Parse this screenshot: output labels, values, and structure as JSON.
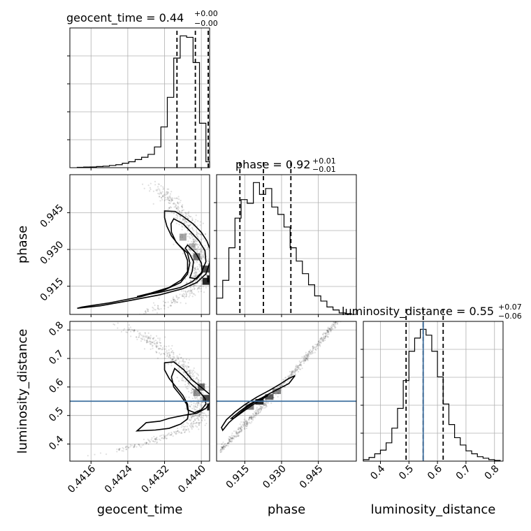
{
  "chart_data": {
    "type": "corner",
    "parameters": [
      "geocent_time",
      "phase",
      "luminosity_distance"
    ],
    "truth": {
      "luminosity_distance": 0.55
    },
    "truth_color": "#3f6f9f",
    "axes": {
      "geocent_time": {
        "range": [
          0.44114,
          0.44418
        ],
        "ticks": [
          0.4416,
          0.4424,
          0.4432,
          0.444
        ],
        "tick_labels": [
          "0.4416",
          "0.4424",
          "0.4432",
          "0.4440"
        ],
        "label": "geocent_time"
      },
      "phase": {
        "range": [
          0.9035,
          0.9605
        ],
        "ticks": [
          0.915,
          0.93,
          0.945
        ],
        "tick_labels": [
          "0.915",
          "0.930",
          "0.945"
        ],
        "label": "phase"
      },
      "luminosity_distance": {
        "range": [
          0.34,
          0.83
        ],
        "ticks": [
          0.4,
          0.5,
          0.6,
          0.7,
          0.8
        ],
        "tick_labels": [
          "0.4",
          "0.5",
          "0.6",
          "0.7",
          "0.8"
        ],
        "label": "luminosity_distance"
      }
    },
    "titles": [
      {
        "param": "geocent_time",
        "text": "geocent_time = 0.44",
        "sup": "+0.00",
        "sub": "−0.00"
      },
      {
        "param": "phase",
        "text": "phase = 0.92",
        "sup": "+0.01",
        "sub": "−0.01"
      },
      {
        "param": "luminosity_distance",
        "text": "luminosity_distance = 0.55",
        "sup": "+0.07",
        "sub": "−0.06"
      }
    ],
    "histograms": {
      "geocent_time": {
        "bin_edges": [
          0.4413,
          0.44144,
          0.44158,
          0.44172,
          0.44186,
          0.442,
          0.44214,
          0.44228,
          0.44242,
          0.44256,
          0.4427,
          0.44284,
          0.44298,
          0.44312,
          0.44326,
          0.4434,
          0.44354,
          0.44368,
          0.44382,
          0.44396,
          0.4441,
          0.44418
        ],
        "counts": [
          0.5,
          0.8,
          1,
          1.5,
          2,
          3,
          4,
          6,
          8,
          11,
          14,
          18,
          28,
          55,
          95,
          148,
          178,
          176,
          142,
          60,
          8
        ],
        "quantiles": [
          0.44347,
          0.44387,
          0.44415
        ]
      },
      "phase": {
        "bin_edges": [
          0.9035,
          0.906,
          0.9085,
          0.911,
          0.9135,
          0.916,
          0.9185,
          0.921,
          0.9235,
          0.926,
          0.9285,
          0.931,
          0.9335,
          0.936,
          0.9385,
          0.941,
          0.9435,
          0.946,
          0.9485,
          0.951,
          0.9535,
          0.956,
          0.9585
        ],
        "counts": [
          22,
          46,
          90,
          130,
          155,
          150,
          178,
          162,
          170,
          145,
          135,
          118,
          90,
          72,
          55,
          40,
          25,
          18,
          10,
          6,
          2,
          1
        ],
        "quantiles": [
          0.913,
          0.9226,
          0.9338
        ]
      },
      "luminosity_distance": {
        "bin_edges": [
          0.34,
          0.36,
          0.38,
          0.4,
          0.42,
          0.44,
          0.46,
          0.48,
          0.5,
          0.52,
          0.54,
          0.56,
          0.58,
          0.6,
          0.62,
          0.64,
          0.66,
          0.68,
          0.7,
          0.72,
          0.74,
          0.76,
          0.78,
          0.8,
          0.82
        ],
        "counts": [
          2,
          5,
          10,
          15,
          25,
          45,
          72,
          110,
          150,
          168,
          180,
          172,
          150,
          115,
          78,
          50,
          32,
          22,
          14,
          10,
          6,
          4,
          2,
          1
        ],
        "quantiles": [
          0.49,
          0.55,
          0.62
        ]
      }
    },
    "scatter_2d": {
      "phase_vs_geocent_time": {
        "center": [
          0.44392,
          0.9255
        ],
        "contours": [
          [
            [
              0.4432,
              0.9457
            ],
            [
              0.44343,
              0.9455
            ],
            [
              0.4436,
              0.9435
            ],
            [
              0.44382,
              0.9405
            ],
            [
              0.444,
              0.937
            ],
            [
              0.44412,
              0.9335
            ],
            [
              0.4442,
              0.9295
            ],
            [
              0.44418,
              0.9245
            ],
            [
              0.4441,
              0.92
            ],
            [
              0.4439,
              0.9165
            ],
            [
              0.4436,
              0.914
            ],
            [
              0.4431,
              0.9115
            ],
            [
              0.4424,
              0.909
            ],
            [
              0.4418,
              0.907
            ],
            [
              0.4413,
              0.906
            ],
            [
              0.4414,
              0.9065
            ],
            [
              0.442,
              0.9082
            ],
            [
              0.4427,
              0.9108
            ],
            [
              0.4432,
              0.9135
            ],
            [
              0.44355,
              0.9165
            ],
            [
              0.4437,
              0.92
            ],
            [
              0.44375,
              0.9245
            ],
            [
              0.4437,
              0.9285
            ],
            [
              0.4435,
              0.932
            ],
            [
              0.44335,
              0.9355
            ],
            [
              0.44325,
              0.9395
            ],
            [
              0.4432,
              0.943
            ],
            [
              0.4432,
              0.9457
            ]
          ],
          [
            [
              0.4434,
              0.9425
            ],
            [
              0.4436,
              0.9405
            ],
            [
              0.44378,
              0.937
            ],
            [
              0.44395,
              0.9335
            ],
            [
              0.44408,
              0.9295
            ],
            [
              0.4441,
              0.925
            ],
            [
              0.444,
              0.9205
            ],
            [
              0.44382,
              0.917
            ],
            [
              0.44355,
              0.9145
            ],
            [
              0.4431,
              0.9125
            ],
            [
              0.4426,
              0.9108
            ],
            [
              0.4429,
              0.9122
            ],
            [
              0.4433,
              0.9145
            ],
            [
              0.44356,
              0.9175
            ],
            [
              0.4437,
              0.921
            ],
            [
              0.4437,
              0.9255
            ],
            [
              0.44362,
              0.9295
            ],
            [
              0.44345,
              0.933
            ],
            [
              0.44335,
              0.937
            ],
            [
              0.44334,
              0.9405
            ],
            [
              0.4434,
              0.9425
            ]
          ],
          [
            [
              0.4437,
              0.9318
            ],
            [
              0.44388,
              0.9285
            ],
            [
              0.444,
              0.9245
            ],
            [
              0.44402,
              0.9205
            ],
            [
              0.4439,
              0.918
            ],
            [
              0.44375,
              0.9185
            ],
            [
              0.4438,
              0.921
            ],
            [
              0.44383,
              0.925
            ],
            [
              0.44375,
              0.928
            ],
            [
              0.44365,
              0.9305
            ],
            [
              0.4437,
              0.9318
            ]
          ]
        ]
      },
      "luminosity_distance_vs_geocent_time": {
        "contours": [
          [
            [
              0.4432,
              0.685
            ],
            [
              0.4434,
              0.688
            ],
            [
              0.44362,
              0.66
            ],
            [
              0.4438,
              0.625
            ],
            [
              0.44402,
              0.596
            ],
            [
              0.4442,
              0.572
            ],
            [
              0.4442,
              0.548
            ],
            [
              0.4441,
              0.525
            ],
            [
              0.4439,
              0.508
            ],
            [
              0.4436,
              0.5
            ],
            [
              0.4433,
              0.49
            ],
            [
              0.4431,
              0.48
            ],
            [
              0.4428,
              0.475
            ],
            [
              0.4427,
              0.46
            ],
            [
              0.4426,
              0.446
            ],
            [
              0.443,
              0.449
            ],
            [
              0.4433,
              0.455
            ],
            [
              0.44355,
              0.47
            ],
            [
              0.4437,
              0.488
            ],
            [
              0.44372,
              0.51
            ],
            [
              0.4437,
              0.54
            ],
            [
              0.4436,
              0.57
            ],
            [
              0.44345,
              0.6
            ],
            [
              0.4433,
              0.63
            ],
            [
              0.4432,
              0.66
            ],
            [
              0.4432,
              0.685
            ]
          ],
          [
            [
              0.44342,
              0.665
            ],
            [
              0.4436,
              0.64
            ],
            [
              0.44378,
              0.61
            ],
            [
              0.44395,
              0.585
            ],
            [
              0.44408,
              0.56
            ],
            [
              0.4441,
              0.54
            ],
            [
              0.444,
              0.52
            ],
            [
              0.44385,
              0.51
            ],
            [
              0.4437,
              0.52
            ],
            [
              0.44368,
              0.54
            ],
            [
              0.44355,
              0.57
            ],
            [
              0.4434,
              0.6
            ],
            [
              0.44335,
              0.635
            ],
            [
              0.44342,
              0.665
            ]
          ]
        ]
      },
      "luminosity_distance_vs_phase": {
        "contours": [
          [
            [
              0.906,
              0.448
            ],
            [
              0.9085,
              0.475
            ],
            [
              0.912,
              0.502
            ],
            [
              0.916,
              0.53
            ],
            [
              0.92,
              0.552
            ],
            [
              0.924,
              0.572
            ],
            [
              0.928,
              0.59
            ],
            [
              0.933,
              0.612
            ],
            [
              0.9355,
              0.64
            ],
            [
              0.933,
              0.63
            ],
            [
              0.929,
              0.608
            ],
            [
              0.925,
              0.588
            ],
            [
              0.92,
              0.565
            ],
            [
              0.915,
              0.538
            ],
            [
              0.911,
              0.512
            ],
            [
              0.9075,
              0.485
            ],
            [
              0.9055,
              0.458
            ],
            [
              0.906,
              0.448
            ]
          ],
          [
            [
              0.9095,
              0.49
            ],
            [
              0.913,
              0.515
            ],
            [
              0.917,
              0.54
            ],
            [
              0.921,
              0.558
            ],
            [
              0.9245,
              0.57
            ],
            [
              0.922,
              0.557
            ],
            [
              0.918,
              0.536
            ],
            [
              0.914,
              0.512
            ],
            [
              0.9105,
              0.49
            ],
            [
              0.9095,
              0.49
            ]
          ]
        ]
      }
    }
  }
}
